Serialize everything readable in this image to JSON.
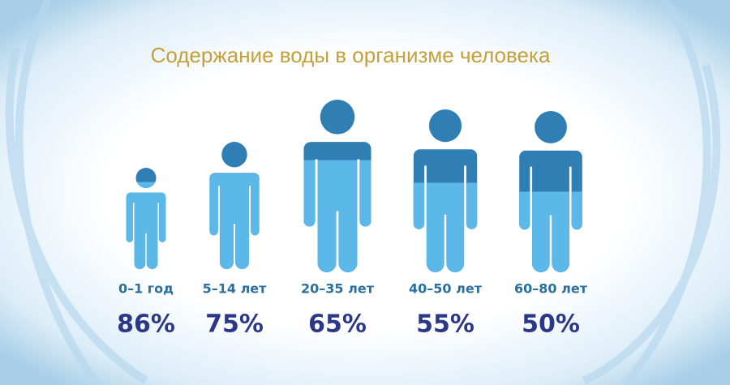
{
  "chart_data": {
    "type": "pictogram",
    "title": "Содержание воды в организме человека",
    "categories": [
      "0–1 год",
      "5–14 лет",
      "20–35 лет",
      "40–50 лет",
      "60–80 лет"
    ],
    "values": [
      86,
      75,
      65,
      55,
      50
    ],
    "value_labels": [
      "86%",
      "75%",
      "65%",
      "55%",
      "50%"
    ],
    "fill_color": "#5bb8e8",
    "empty_color": "#2f7fb5"
  }
}
